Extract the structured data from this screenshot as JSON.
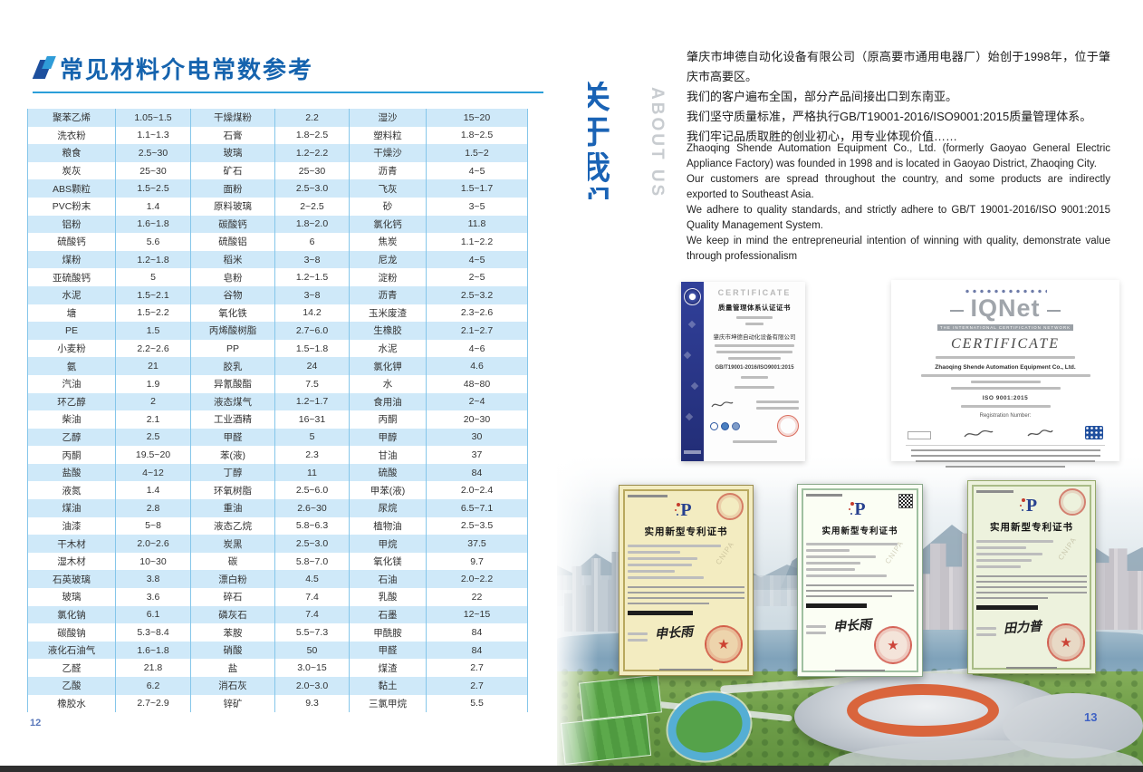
{
  "page_left": {
    "page_number": "12",
    "title": "常见材料介电常数参考",
    "table": {
      "columns": [
        "材料",
        "介电常数",
        "材料",
        "介电常数",
        "材料",
        "介电常数"
      ],
      "rows": [
        [
          "聚苯乙烯",
          "1.05~1.5",
          "干燥煤粉",
          "2.2",
          "湿沙",
          "15~20"
        ],
        [
          "洗衣粉",
          "1.1~1.3",
          "石膏",
          "1.8~2.5",
          "塑料粒",
          "1.8~2.5"
        ],
        [
          "粮食",
          "2.5~30",
          "玻璃",
          "1.2~2.2",
          "干燥沙",
          "1.5~2"
        ],
        [
          "炭灰",
          "25~30",
          "矿石",
          "25~30",
          "沥青",
          "4~5"
        ],
        [
          "ABS颗粒",
          "1.5~2.5",
          "面粉",
          "2.5~3.0",
          "飞灰",
          "1.5~1.7"
        ],
        [
          "PVC粉末",
          "1.4",
          "原料玻璃",
          "2~2.5",
          "砂",
          "3~5"
        ],
        [
          "铝粉",
          "1.6~1.8",
          "碳酸钙",
          "1.8~2.0",
          "氯化钙",
          "11.8"
        ],
        [
          "硫酸钙",
          "5.6",
          "硫酸铝",
          "6",
          "焦炭",
          "1.1~2.2"
        ],
        [
          "煤粉",
          "1.2~1.8",
          "稻米",
          "3~8",
          "尼龙",
          "4~5"
        ],
        [
          "亚硫酸钙",
          "5",
          "皂粉",
          "1.2~1.5",
          "淀粉",
          "2~5"
        ],
        [
          "水泥",
          "1.5~2.1",
          "谷物",
          "3~8",
          "沥青",
          "2.5~3.2"
        ],
        [
          "塘",
          "1.5~2.2",
          "氧化铁",
          "14.2",
          "玉米废渣",
          "2.3~2.6"
        ],
        [
          "PE",
          "1.5",
          "丙烯酸树脂",
          "2.7~6.0",
          "生橡胶",
          "2.1~2.7"
        ],
        [
          "小麦粉",
          "2.2~2.6",
          "PP",
          "1.5~1.8",
          "水泥",
          "4~6"
        ],
        [
          "氨",
          "21",
          "胶乳",
          "24",
          "氯化钾",
          "4.6"
        ],
        [
          "汽油",
          "1.9",
          "异氰酸酯",
          "7.5",
          "水",
          "48~80"
        ],
        [
          "环乙醇",
          "2",
          "液态煤气",
          "1.2~1.7",
          "食用油",
          "2~4"
        ],
        [
          "柴油",
          "2.1",
          "工业酒精",
          "16~31",
          "丙酮",
          "20~30"
        ],
        [
          "乙醇",
          "2.5",
          "甲醛",
          "5",
          "甲醇",
          "30"
        ],
        [
          "丙酮",
          "19.5~20",
          "苯(液)",
          "2.3",
          "甘油",
          "37"
        ],
        [
          "盐酸",
          "4~12",
          "丁醇",
          "11",
          "硫酸",
          "84"
        ],
        [
          "液氮",
          "1.4",
          "环氧树脂",
          "2.5~6.0",
          "甲苯(液)",
          "2.0~2.4"
        ],
        [
          "煤油",
          "2.8",
          "重油",
          "2.6~30",
          "尿烷",
          "6.5~7.1"
        ],
        [
          "油漆",
          "5~8",
          "液态乙烷",
          "5.8~6.3",
          "植物油",
          "2.5~3.5"
        ],
        [
          "干木材",
          "2.0~2.6",
          "炭黑",
          "2.5~3.0",
          "甲烷",
          "37.5"
        ],
        [
          "湿木材",
          "10~30",
          "碳",
          "5.8~7.0",
          "氧化镁",
          "9.7"
        ],
        [
          "石英玻璃",
          "3.8",
          "漂白粉",
          "4.5",
          "石油",
          "2.0~2.2"
        ],
        [
          "玻璃",
          "3.6",
          "碎石",
          "7.4",
          "乳酸",
          "22"
        ],
        [
          "氯化钠",
          "6.1",
          "磷灰石",
          "7.4",
          "石墨",
          "12~15"
        ],
        [
          "碳酸钠",
          "5.3~8.4",
          "苯胺",
          "5.5~7.3",
          "甲酰胺",
          "84"
        ],
        [
          "液化石油气",
          "1.6~1.8",
          "硝酸",
          "50",
          "甲醛",
          "84"
        ],
        [
          "乙醛",
          "21.8",
          "盐",
          "3.0~15",
          "煤渣",
          "2.7"
        ],
        [
          "乙酸",
          "6.2",
          "消石灰",
          "2.0~3.0",
          "黏土",
          "2.7"
        ],
        [
          "橡胶水",
          "2.7~2.9",
          "锌矿",
          "9.3",
          "三氯甲烷",
          "5.5"
        ]
      ]
    }
  },
  "page_right": {
    "page_number": "13",
    "vertical_title_cn": "关于我们",
    "vertical_title_en": "ABOUT US",
    "intro_cn": [
      "肇庆市坤德自动化设备有限公司（原高要市通用电器厂）始创于1998年，位于肇庆市高要区。",
      "我们的客户遍布全国，部分产品间接出口到东南亚。",
      "我们坚守质量标准，严格执行GB/T19001-2016/ISO9001:2015质量管理体系。",
      "我们牢记品质取胜的创业初心，用专业体现价值……"
    ],
    "intro_en": [
      "Zhaoqing Shende Automation Equipment Co., Ltd. (formerly Gaoyao General Electric Appliance Factory) was founded in 1998 and is located in Gaoyao District, Zhaoqing City.",
      "Our customers are spread throughout the country, and some products are indirectly exported to Southeast Asia.",
      "We adhere to quality standards, and strictly adhere to GB/T 19001-2016/ISO 9001:2015 Quality Management System.",
      "We keep in mind the entrepreneurial intention of winning with quality, demonstrate value through professionalism"
    ],
    "iso_certificate": {
      "header": "CERTIFICATE",
      "title": "质量管理体系认证证书",
      "company": "肇庆市坤德自动化设备有限公司",
      "standard": "GB/T19001-2016/ISO9001:2015"
    },
    "iqnet_certificate": {
      "brand": "IQNet",
      "tagline": "THE INTERNATIONAL CERTIFICATION NETWORK",
      "header": "CERTIFICATE",
      "company": "Zhaoqing Shende Automation Equipment Co., Ltd.",
      "standard": "ISO 9001:2015",
      "registration_label": "Registration Number:"
    },
    "patents": [
      {
        "title": "实用新型专利证书",
        "signature": "申长雨",
        "watermark": "CNIPA",
        "logo_letter": "P"
      },
      {
        "title": "实用新型专利证书",
        "signature": "申长雨",
        "watermark": "CNIPA",
        "logo_letter": "P"
      },
      {
        "title": "实用新型专利证书",
        "signature": "田力普",
        "watermark": "CNIPA",
        "logo_letter": "P"
      }
    ]
  },
  "colors": {
    "accent_blue": "#1563ae",
    "rule_blue": "#2b9fd9",
    "table_row_blue": "#cfe9f9",
    "table_border_blue": "#85c6ea",
    "page_number_blue": "#5b79bb",
    "cert_navy": "#2b3a8c",
    "seal_red": "#c6281c",
    "stadium_orange": "#d9582a"
  }
}
